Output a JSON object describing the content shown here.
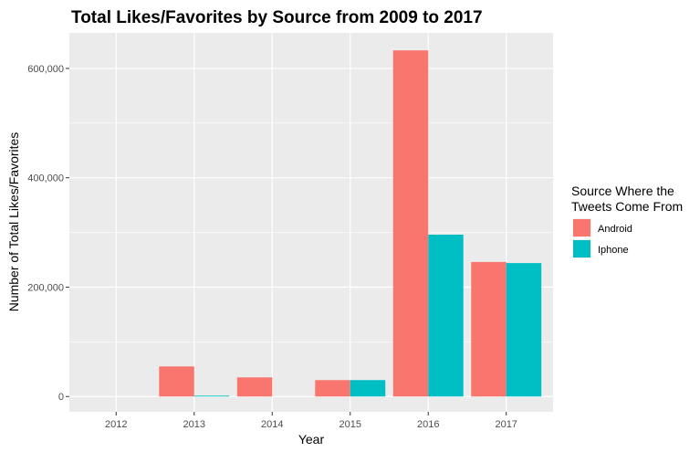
{
  "chart_data": {
    "type": "bar",
    "title": "Total Likes/Favorites by Source from 2009 to 2017",
    "xlabel": "Year",
    "ylabel": "Number of Total Likes/Favorites",
    "categories": [
      "2012",
      "2013",
      "2014",
      "2015",
      "2016",
      "2017"
    ],
    "series": [
      {
        "name": "Android",
        "color": "#F8766D",
        "values": [
          0,
          55000,
          35000,
          30000,
          633000,
          246000
        ]
      },
      {
        "name": "Iphone",
        "color": "#00BFC4",
        "values": [
          0,
          1500,
          0,
          30000,
          296000,
          244000
        ]
      }
    ],
    "ylim": [
      -28000,
      665000
    ],
    "yticks": [
      0,
      200000,
      400000,
      600000
    ],
    "ytick_labels": [
      "0",
      "200,000",
      "400,000",
      "600,000"
    ],
    "grid": true,
    "legend": {
      "title_lines": [
        "Source Where the",
        "Tweets Come From"
      ],
      "placement": "right"
    }
  }
}
